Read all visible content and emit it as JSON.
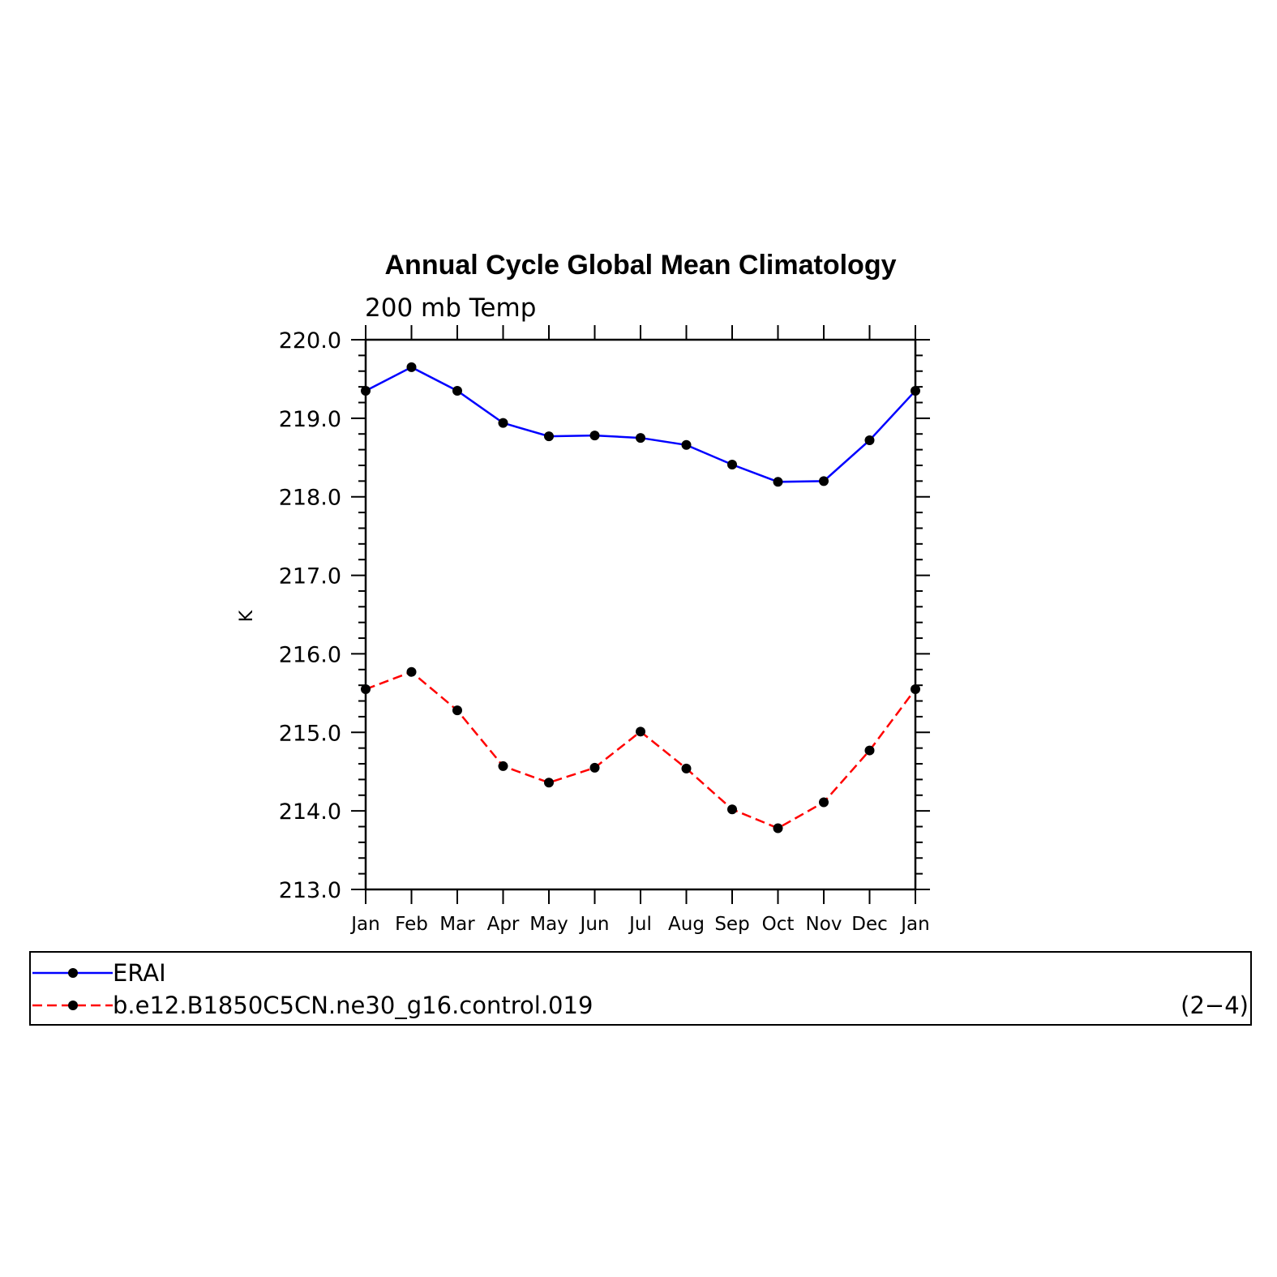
{
  "chart_data": {
    "type": "line",
    "title": "Annual Cycle Global Mean Climatology",
    "subtitle": "200 mb Temp",
    "ylabel": "K",
    "xlabel": "",
    "categories": [
      "Jan",
      "Feb",
      "Mar",
      "Apr",
      "May",
      "Jun",
      "Jul",
      "Aug",
      "Sep",
      "Oct",
      "Nov",
      "Dec",
      "Jan"
    ],
    "ylim": [
      213.0,
      220.0
    ],
    "yticks": [
      "213.0",
      "214.0",
      "215.0",
      "216.0",
      "217.0",
      "218.0",
      "219.0",
      "220.0"
    ],
    "grid": false,
    "legend_position": "bottom",
    "series": [
      {
        "name": "ERAI",
        "color": "#0000ff",
        "dash": "solid",
        "values": [
          219.35,
          219.65,
          219.35,
          218.94,
          218.77,
          218.78,
          218.75,
          218.66,
          218.41,
          218.19,
          218.2,
          218.72,
          219.35
        ]
      },
      {
        "name": "b.e12.B1850C5CN.ne30_g16.control.019",
        "color": "#ff0000",
        "dash": "dashed",
        "values": [
          215.55,
          215.77,
          215.28,
          214.57,
          214.36,
          214.55,
          215.01,
          214.54,
          214.02,
          213.78,
          214.11,
          214.77,
          215.55
        ]
      }
    ],
    "panel_label": "(2−4)"
  }
}
